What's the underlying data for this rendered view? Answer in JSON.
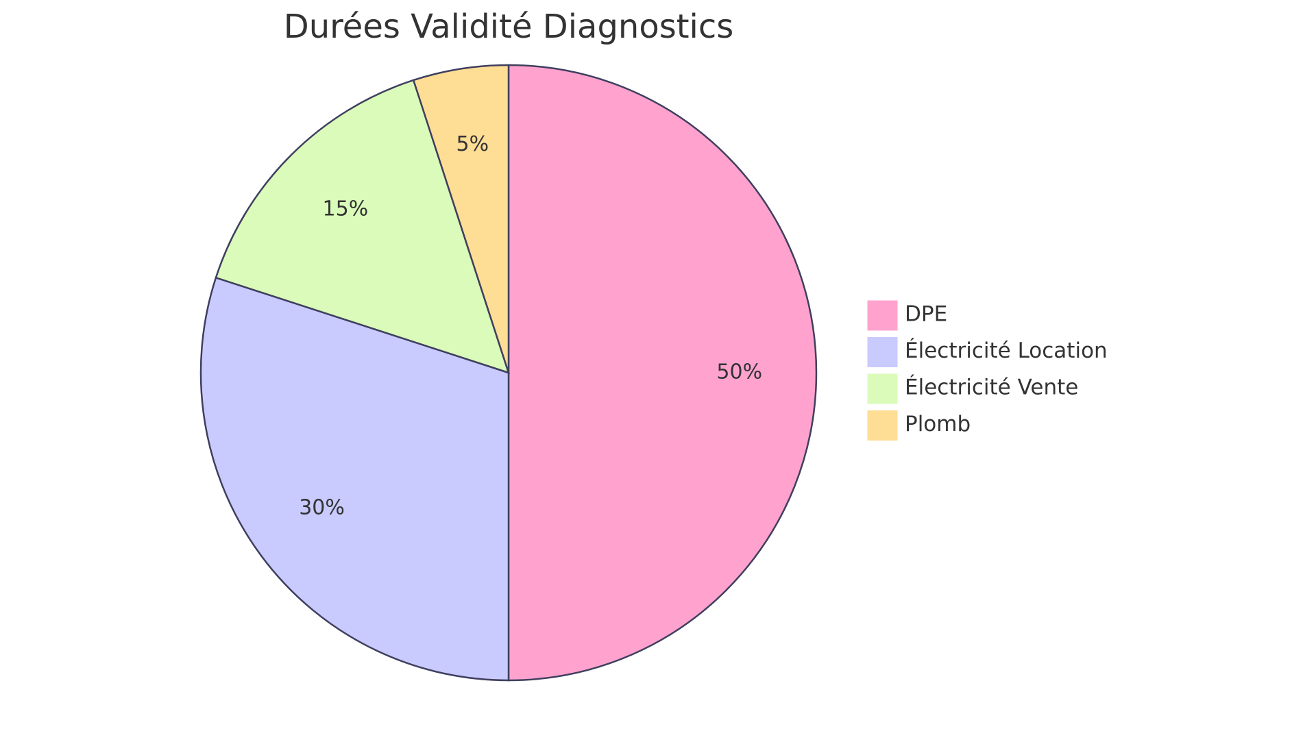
{
  "chart_data": {
    "type": "pie",
    "title": "Durées Validité Diagnostics",
    "categories": [
      "DPE",
      "Électricité Location",
      "Électricité Vente",
      "Plomb"
    ],
    "values": [
      50,
      30,
      15,
      5
    ],
    "value_labels": [
      "50%",
      "30%",
      "15%",
      "5%"
    ],
    "colors": [
      "#ffa3ce",
      "#c9cafe",
      "#dafbb9",
      "#fedd95"
    ],
    "legend": "right"
  }
}
